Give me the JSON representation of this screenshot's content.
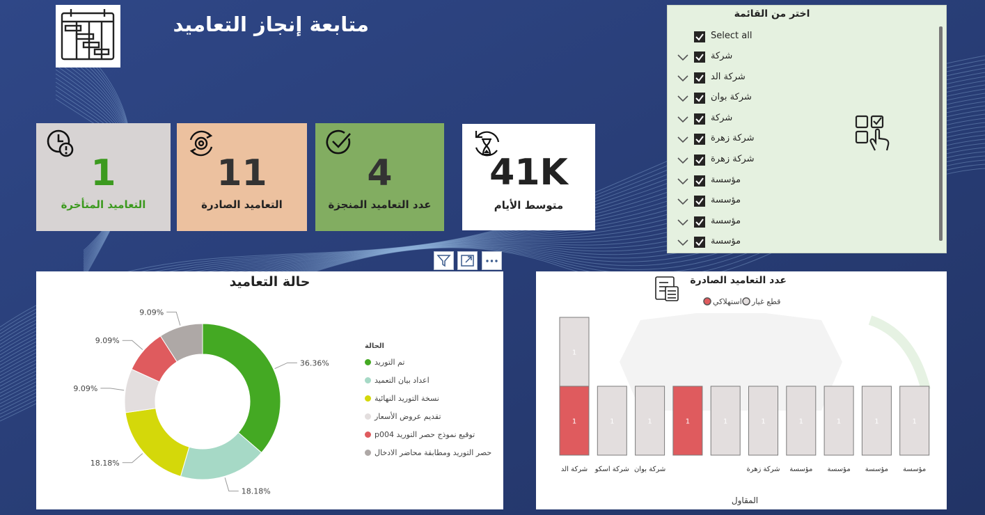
{
  "header": {
    "title": "متابعة إنجاز التعاميد",
    "logo_icon": "gantt-chart-icon"
  },
  "kpis": [
    {
      "id": "late",
      "value": "1",
      "label": "التعاميد المتأخرة",
      "icon": "clock-alert-icon"
    },
    {
      "id": "issued",
      "value": "11",
      "label": "التعاميد الصادرة",
      "icon": "gear-sync-icon"
    },
    {
      "id": "done",
      "value": "4",
      "label": "عدد التعاميد المنجزة",
      "icon": "check-circle-icon"
    },
    {
      "id": "avg",
      "value": "41K",
      "label": "متوسط الأيام",
      "icon": "hourglass-cycle-icon"
    }
  ],
  "slicer": {
    "title": "اختر من القائمة",
    "select_all": "Select all",
    "items": [
      "شركة",
      "شركة الد",
      "شركة بوان",
      "شركة",
      "شركة زهرة",
      "شركة زهرة",
      "مؤسسة",
      "مؤسسة",
      "مؤسسة",
      "مؤسسة"
    ]
  },
  "visual_header": [
    "filter-icon",
    "focus-mode-icon",
    "more-options-icon"
  ],
  "chart_data": [
    {
      "type": "pie",
      "title": "حالة التعاميد",
      "legend_title": "الحالة",
      "legend_position": "right",
      "slices": [
        {
          "label": "تم التوريد",
          "value": 36.36,
          "display": "36.36%",
          "color": "#44a923"
        },
        {
          "label": "اعداد بيان التعميد",
          "value": 18.18,
          "display": "18.18%",
          "color": "#a6d9c6"
        },
        {
          "label": "نسخة التوريد النهائية",
          "value": 18.18,
          "display": "18.18%",
          "color": "#d4d80a"
        },
        {
          "label": "تقديم عروض الأسعار",
          "value": 9.09,
          "display": "9.09%",
          "color": "#e3dede"
        },
        {
          "label": "p004 توقيع نموذج حصر التوريد",
          "value": 9.09,
          "display": "9.09%",
          "color": "#df5b5e"
        },
        {
          "label": "حصر التوريد ومطابقة محاضر الادخال",
          "value": 9.09,
          "display": "9.09%",
          "color": "#aea8a6"
        }
      ]
    },
    {
      "type": "bar",
      "stacked": true,
      "title": "عدد التعاميد الصادرة",
      "xlabel": "المقاول",
      "legend_position": "top",
      "series": [
        {
          "name": "استهلاكي",
          "color": "#df5b5e",
          "values": [
            1,
            0,
            0,
            1,
            0,
            0,
            0,
            0,
            0,
            0
          ]
        },
        {
          "name": "قطع غيار",
          "color": "#e3dede",
          "values": [
            1,
            1,
            1,
            0,
            1,
            1,
            1,
            1,
            1,
            1
          ]
        }
      ],
      "categories": [
        "شركة الد",
        "شركة اسكو",
        "شركة بوان",
        "",
        "",
        "شركة زهرة",
        "مؤسسة",
        "مؤسسة",
        "مؤسسة",
        "مؤسسة"
      ],
      "ylim": [
        0,
        2
      ]
    }
  ]
}
